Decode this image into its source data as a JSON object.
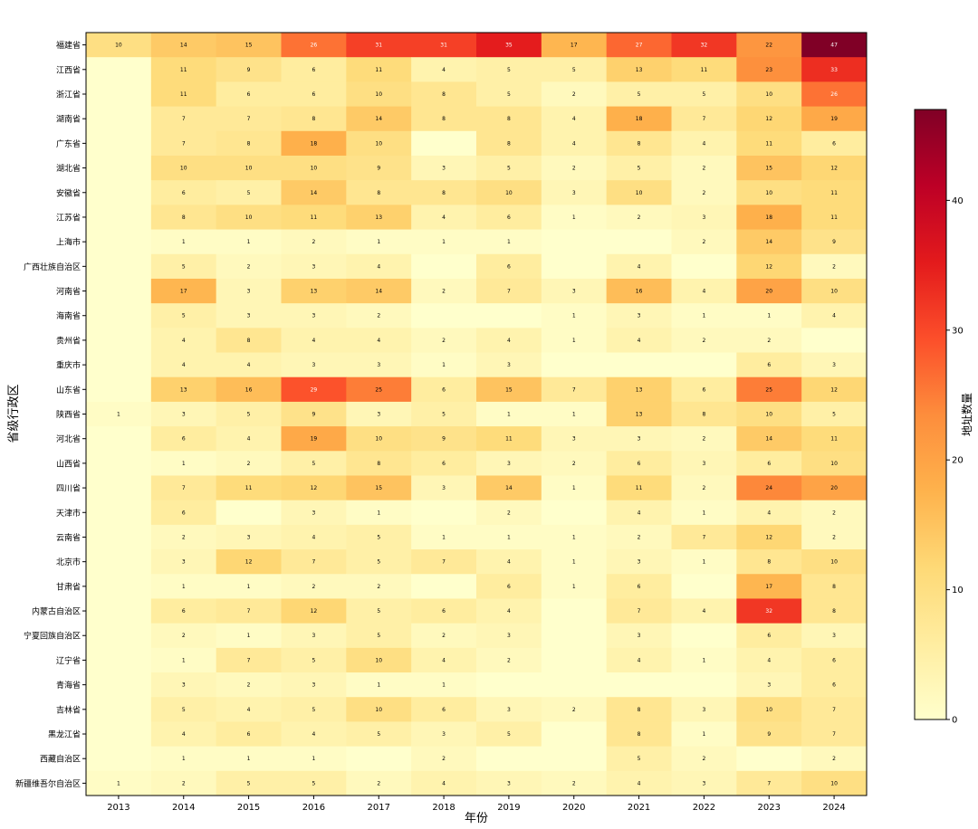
{
  "chart_data": {
    "type": "heatmap",
    "title": "",
    "xlabel": "年份",
    "ylabel": "省级行政区",
    "colorbar_label": "地址数量",
    "colormap": "YlOrRd",
    "vmin": 0,
    "vmax": 47,
    "colorbar_ticks": [
      0,
      10,
      20,
      30,
      40
    ],
    "columns": [
      "2013",
      "2014",
      "2015",
      "2016",
      "2017",
      "2018",
      "2019",
      "2020",
      "2021",
      "2022",
      "2023",
      "2024"
    ],
    "rows": [
      "福建省",
      "江西省",
      "浙江省",
      "湖南省",
      "广东省",
      "湖北省",
      "安徽省",
      "江苏省",
      "上海市",
      "广西壮族自治区",
      "河南省",
      "海南省",
      "贵州省",
      "重庆市",
      "山东省",
      "陕西省",
      "河北省",
      "山西省",
      "四川省",
      "天津市",
      "云南省",
      "北京市",
      "甘肃省",
      "内蒙古自治区",
      "宁夏回族自治区",
      "辽宁省",
      "青海省",
      "吉林省",
      "黑龙江省",
      "西藏自治区",
      "新疆维吾尔自治区"
    ],
    "values": [
      [
        10,
        14,
        15,
        26,
        31,
        31,
        35,
        17,
        27,
        32,
        22,
        47
      ],
      [
        0,
        11,
        9,
        6,
        11,
        4,
        5,
        5,
        13,
        11,
        23,
        33
      ],
      [
        0,
        11,
        6,
        6,
        10,
        8,
        5,
        2,
        5,
        5,
        10,
        26
      ],
      [
        0,
        7,
        7,
        8,
        14,
        8,
        8,
        4,
        18,
        7,
        12,
        19
      ],
      [
        0,
        7,
        8,
        18,
        10,
        0,
        8,
        4,
        8,
        4,
        11,
        6
      ],
      [
        0,
        10,
        10,
        10,
        9,
        3,
        5,
        2,
        5,
        2,
        15,
        12
      ],
      [
        0,
        6,
        5,
        14,
        8,
        8,
        10,
        3,
        10,
        2,
        10,
        11
      ],
      [
        0,
        8,
        10,
        11,
        13,
        4,
        6,
        1,
        2,
        3,
        18,
        11
      ],
      [
        0,
        1,
        1,
        2,
        1,
        1,
        1,
        0,
        0,
        2,
        14,
        9
      ],
      [
        0,
        5,
        2,
        3,
        4,
        0,
        6,
        0,
        4,
        0,
        12,
        2
      ],
      [
        0,
        17,
        3,
        13,
        14,
        2,
        7,
        3,
        16,
        4,
        20,
        10
      ],
      [
        0,
        5,
        3,
        3,
        2,
        0,
        0,
        1,
        3,
        1,
        1,
        4
      ],
      [
        0,
        4,
        8,
        4,
        4,
        2,
        4,
        1,
        4,
        2,
        2,
        0
      ],
      [
        0,
        4,
        4,
        3,
        3,
        1,
        3,
        0,
        0,
        0,
        6,
        3
      ],
      [
        0,
        13,
        16,
        29,
        25,
        6,
        15,
        7,
        13,
        6,
        25,
        12
      ],
      [
        1,
        3,
        5,
        9,
        3,
        5,
        1,
        1,
        13,
        8,
        10,
        5
      ],
      [
        0,
        6,
        4,
        19,
        10,
        9,
        11,
        3,
        3,
        2,
        14,
        11
      ],
      [
        0,
        1,
        2,
        5,
        8,
        6,
        3,
        2,
        6,
        3,
        6,
        10
      ],
      [
        0,
        7,
        11,
        12,
        15,
        3,
        14,
        1,
        11,
        2,
        24,
        20
      ],
      [
        0,
        6,
        0,
        3,
        1,
        0,
        2,
        0,
        4,
        1,
        4,
        2
      ],
      [
        0,
        2,
        3,
        4,
        5,
        1,
        1,
        1,
        2,
        7,
        12,
        2
      ],
      [
        0,
        3,
        12,
        7,
        5,
        7,
        4,
        1,
        3,
        1,
        8,
        10
      ],
      [
        0,
        1,
        1,
        2,
        2,
        0,
        6,
        1,
        6,
        0,
        17,
        8
      ],
      [
        0,
        6,
        7,
        12,
        5,
        6,
        4,
        0,
        7,
        4,
        32,
        8
      ],
      [
        0,
        2,
        1,
        3,
        5,
        2,
        3,
        0,
        3,
        0,
        6,
        3
      ],
      [
        0,
        1,
        7,
        5,
        10,
        4,
        2,
        0,
        4,
        1,
        4,
        6
      ],
      [
        0,
        3,
        2,
        3,
        1,
        1,
        0,
        0,
        0,
        0,
        3,
        6
      ],
      [
        0,
        5,
        4,
        5,
        10,
        6,
        3,
        2,
        8,
        3,
        10,
        7
      ],
      [
        0,
        4,
        6,
        4,
        5,
        3,
        5,
        0,
        8,
        1,
        9,
        7
      ],
      [
        0,
        1,
        1,
        1,
        0,
        2,
        0,
        0,
        5,
        2,
        0,
        2
      ],
      [
        1,
        2,
        5,
        5,
        2,
        4,
        3,
        2,
        4,
        3,
        7,
        10
      ]
    ]
  }
}
